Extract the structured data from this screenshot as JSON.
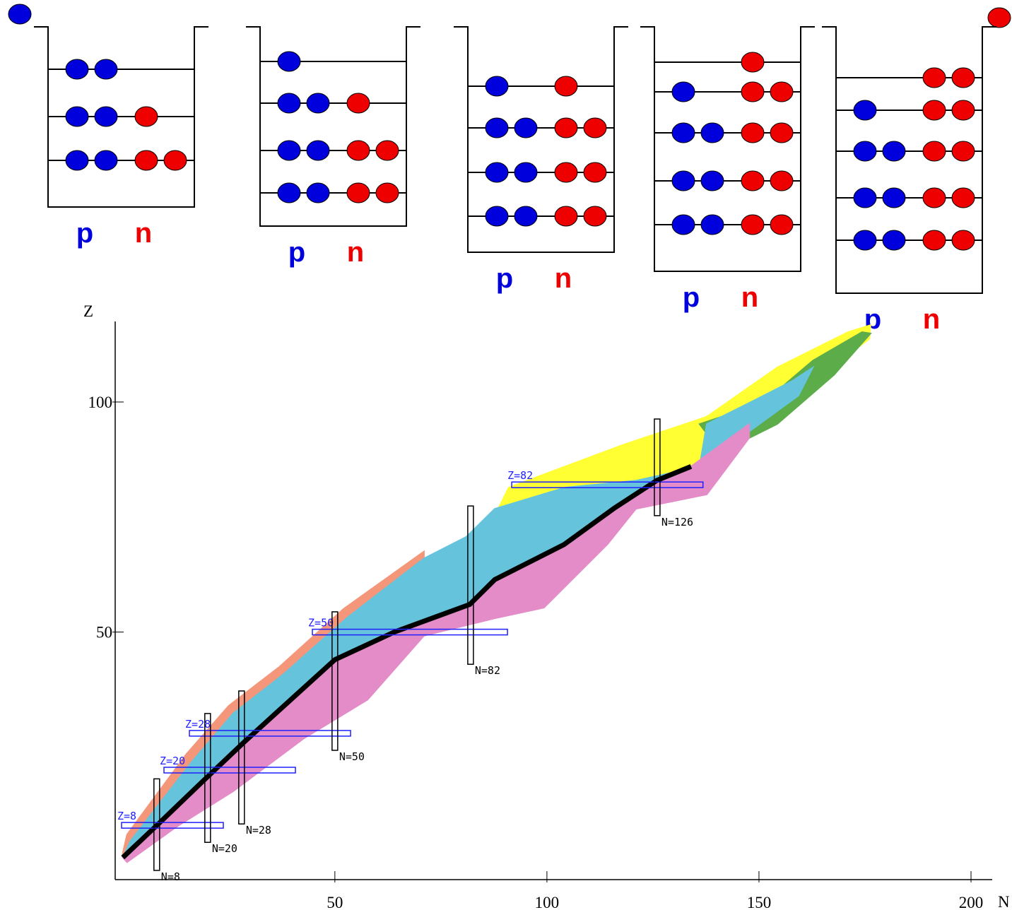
{
  "wells": [
    {
      "levels": [
        {
          "protons": 2,
          "neutrons": 0
        },
        {
          "protons": 2,
          "neutrons": 1
        },
        {
          "protons": 2,
          "neutrons": 2
        }
      ],
      "p": "p",
      "n": "n"
    },
    {
      "levels": [
        {
          "protons": 1,
          "neutrons": 0
        },
        {
          "protons": 2,
          "neutrons": 1
        },
        {
          "protons": 2,
          "neutrons": 2
        },
        {
          "protons": 2,
          "neutrons": 2
        }
      ],
      "p": "p",
      "n": "n"
    },
    {
      "levels": [
        {
          "protons": 1,
          "neutrons": 1
        },
        {
          "protons": 2,
          "neutrons": 2
        },
        {
          "protons": 2,
          "neutrons": 2
        },
        {
          "protons": 2,
          "neutrons": 2
        }
      ],
      "p": "p",
      "n": "n"
    },
    {
      "levels": [
        {
          "protons": 0,
          "neutrons": 1
        },
        {
          "protons": 1,
          "neutrons": 2
        },
        {
          "protons": 2,
          "neutrons": 2
        },
        {
          "protons": 2,
          "neutrons": 2
        },
        {
          "protons": 2,
          "neutrons": 2
        }
      ],
      "p": "p",
      "n": "n"
    },
    {
      "levels": [
        {
          "protons": 0,
          "neutrons": 2
        },
        {
          "protons": 1,
          "neutrons": 2
        },
        {
          "protons": 2,
          "neutrons": 2
        },
        {
          "protons": 2,
          "neutrons": 2
        },
        {
          "protons": 2,
          "neutrons": 2
        }
      ],
      "p": "p",
      "n": "n"
    }
  ],
  "chart_data": {
    "type": "nuclide",
    "xlabel": "N",
    "ylabel": "Z",
    "xlim": [
      -1.8,
      205
    ],
    "ylim": [
      -3.8,
      117.5
    ],
    "xticks": [
      50,
      100,
      150,
      200
    ],
    "yticks": [
      50,
      100
    ],
    "series": [
      {
        "color": "#f4967a",
        "fill": true,
        "x": [
          0,
          1,
          15,
          25,
          37,
          52,
          71,
          71,
          0
        ],
        "values": [
          2,
          6,
          23.5,
          34,
          42.5,
          55,
          67.5,
          60,
          2
        ]
      },
      {
        "color": "#ffff33",
        "fill": true,
        "x": [
          84.3,
          91,
          117.7,
          137.7,
          154.3,
          171,
          176.3,
          176,
          162.7,
          151,
          137.7,
          131,
          121,
          97.7,
          86
        ],
        "values": [
          69.1,
          81.4,
          90.6,
          96.8,
          107.5,
          115.2,
          116.7,
          113.7,
          104.5,
          96.8,
          89.1,
          82.9,
          79.9,
          73.7,
          64.5
        ]
      },
      {
        "color": "#5cac4a",
        "fill": true,
        "x": [
          136,
          151,
          162.7,
          174.3,
          176.3,
          167.7,
          154.3,
          141
        ],
        "values": [
          95.2,
          99.8,
          109,
          115.2,
          114.9,
          105.9,
          95.2,
          89.1
        ]
      },
      {
        "color": "#65c4dc",
        "fill": true,
        "x": [
          1.8,
          16,
          26,
          37.7,
          52.7,
          71,
          81,
          87.7,
          104.3,
          121,
          136,
          137.7,
          147.7,
          157.7,
          162.7,
          159.3,
          141,
          134,
          126,
          116,
          104,
          87.7,
          81.8,
          64,
          50,
          28.5,
          19,
          8.5,
          0
        ],
        "values": [
          4.6,
          21.5,
          32.3,
          40.7,
          53,
          66,
          70.7,
          76.8,
          81.4,
          82.9,
          86,
          95.2,
          99.8,
          104.5,
          107.5,
          101.4,
          89.1,
          86,
          83,
          77,
          69,
          61.4,
          56,
          50,
          44,
          26,
          17.7,
          8.4,
          1
        ]
      },
      {
        "color": "#e48cc8",
        "fill": true,
        "x": [
          0,
          8.5,
          19,
          28.5,
          50,
          64,
          81.8,
          87.7,
          104,
          116,
          126,
          134,
          147.7,
          147.7,
          137.7,
          121,
          114.3,
          99.3,
          87.7,
          71,
          57.7,
          42.7,
          26,
          12.7,
          1
        ],
        "values": [
          1,
          8.4,
          17.7,
          26,
          44,
          50,
          56,
          61.4,
          69,
          77,
          83,
          86,
          95.2,
          92.2,
          79.9,
          76.8,
          69.1,
          55.3,
          53,
          49.2,
          35.3,
          26.9,
          15.4,
          7.7,
          0
        ]
      },
      {
        "color": "#000000",
        "fill": false,
        "x": [
          0,
          8.5,
          19,
          28.5,
          50,
          64,
          81.8,
          87.7,
          104,
          116,
          126,
          134
        ],
        "values": [
          1,
          8.4,
          17.7,
          26,
          44,
          50,
          56,
          61.4,
          69,
          77,
          83,
          86
        ]
      }
    ],
    "z_shells": [
      {
        "label": "Z=8",
        "value": 8,
        "range": [
          -0.3,
          23.7
        ]
      },
      {
        "label": "Z=20",
        "value": 20,
        "range": [
          9.7,
          40.7
        ]
      },
      {
        "label": "Z=28",
        "value": 28,
        "range": [
          15.7,
          53.7
        ]
      },
      {
        "label": "Z=50",
        "value": 50,
        "range": [
          44.7,
          90.7
        ]
      },
      {
        "label": "Z=82",
        "value": 82,
        "range": [
          91.7,
          136.8
        ]
      }
    ],
    "n_shells": [
      {
        "label": "N=8",
        "value": 8,
        "range": [
          -1.8,
          18.1
        ]
      },
      {
        "label": "N=20",
        "value": 20,
        "range": [
          4.3,
          32.3
        ]
      },
      {
        "label": "N=28",
        "value": 28,
        "range": [
          8.3,
          37.2
        ]
      },
      {
        "label": "N=50",
        "value": 50,
        "range": [
          24.3,
          54.4
        ]
      },
      {
        "label": "N=82",
        "value": 82,
        "range": [
          43,
          77.4
        ]
      },
      {
        "label": "N=126",
        "value": 126,
        "range": [
          75.3,
          96.3
        ]
      }
    ]
  }
}
